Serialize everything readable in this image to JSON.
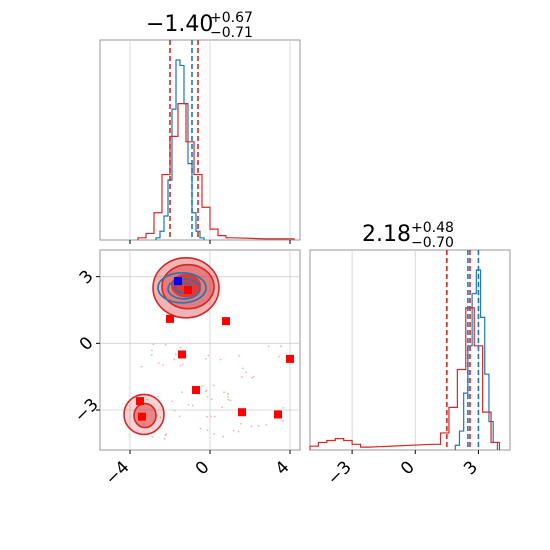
{
  "chart_data": [
    {
      "type": "histogram",
      "panel": "top-left marginal (x)",
      "title": {
        "median": "−1.40",
        "plus": "+0.67",
        "minus": "−0.71"
      },
      "xlim": [
        -5.5,
        4.5
      ],
      "grid": true,
      "x_ticks": [
        -4,
        0,
        4
      ],
      "series": [
        {
          "color": "#1f77b4",
          "bins_x": [
            -2.6,
            -2.4,
            -2.2,
            -2.0,
            -1.8,
            -1.6,
            -1.4,
            -1.2,
            -1.0,
            -0.8,
            -0.6,
            -0.4
          ],
          "counts": [
            2,
            8,
            22,
            55,
            120,
            165,
            160,
            125,
            70,
            25,
            8,
            2
          ]
        },
        {
          "color": "#d62728",
          "bins_x": [
            -3.4,
            -3.0,
            -2.6,
            -2.2,
            -1.8,
            -1.4,
            -1.0,
            -0.6,
            -0.2,
            0.2,
            0.6,
            1.0,
            3.0,
            4.0
          ],
          "counts": [
            2,
            6,
            25,
            60,
            95,
            125,
            90,
            60,
            30,
            10,
            4,
            2,
            1,
            1
          ]
        }
      ],
      "quantiles": {
        "red": [
          -2.0,
          -0.6
        ],
        "blue": [
          -0.9
        ]
      }
    },
    {
      "type": "scatter",
      "panel": "bottom-left 2D (x vs y)",
      "xlim": [
        -5.5,
        4.5
      ],
      "ylim": [
        -4.8,
        4.2
      ],
      "grid": true,
      "x_ticks": [
        -4,
        0,
        4
      ],
      "y_ticks": [
        3,
        0,
        -3
      ],
      "contours": {
        "red_upper": {
          "center": [
            -1.2,
            2.5
          ],
          "levels": 3
        },
        "red_lower": {
          "center": [
            -3.3,
            -3.2
          ],
          "levels": 2
        },
        "blue_upper": {
          "center": [
            -1.4,
            2.4
          ],
          "levels": 3
        }
      },
      "markers": {
        "red_squares": [
          [
            -1.1,
            2.4
          ],
          [
            -2.0,
            1.1
          ],
          [
            0.8,
            1.0
          ],
          [
            -1.4,
            -0.5
          ],
          [
            -0.7,
            -2.1
          ],
          [
            4.0,
            -0.7
          ],
          [
            -3.5,
            -2.6
          ],
          [
            -3.4,
            -3.3
          ],
          [
            1.6,
            -3.1
          ],
          [
            3.4,
            -3.2
          ]
        ],
        "blue_squares": [
          [
            -1.6,
            2.8
          ]
        ]
      }
    },
    {
      "type": "histogram",
      "panel": "bottom-right marginal (y)",
      "title": {
        "median": "2.18",
        "plus": "+0.48",
        "minus": "−0.70"
      },
      "xlim": [
        -5.0,
        4.5
      ],
      "grid": true,
      "x_ticks": [
        -3,
        0,
        3
      ],
      "series": [
        {
          "color": "#1f77b4",
          "bins_x": [
            2.0,
            2.2,
            2.4,
            2.6,
            2.8,
            3.0,
            3.2,
            3.4,
            3.6,
            3.8
          ],
          "counts": [
            5,
            20,
            60,
            110,
            165,
            190,
            140,
            80,
            30,
            8
          ]
        },
        {
          "color": "#d62728",
          "bins_x": [
            -4.8,
            -4.4,
            -4.0,
            -3.6,
            -3.2,
            -2.8,
            -2.4,
            1.0,
            1.4,
            1.8,
            2.2,
            2.6,
            3.0,
            3.4,
            3.8
          ],
          "counts": [
            4,
            8,
            10,
            12,
            10,
            6,
            3,
            6,
            18,
            45,
            85,
            150,
            110,
            40,
            8
          ]
        }
      ],
      "quantiles": {
        "red": [
          1.5,
          2.6
        ],
        "blue": [
          2.5,
          3.0
        ]
      }
    }
  ]
}
